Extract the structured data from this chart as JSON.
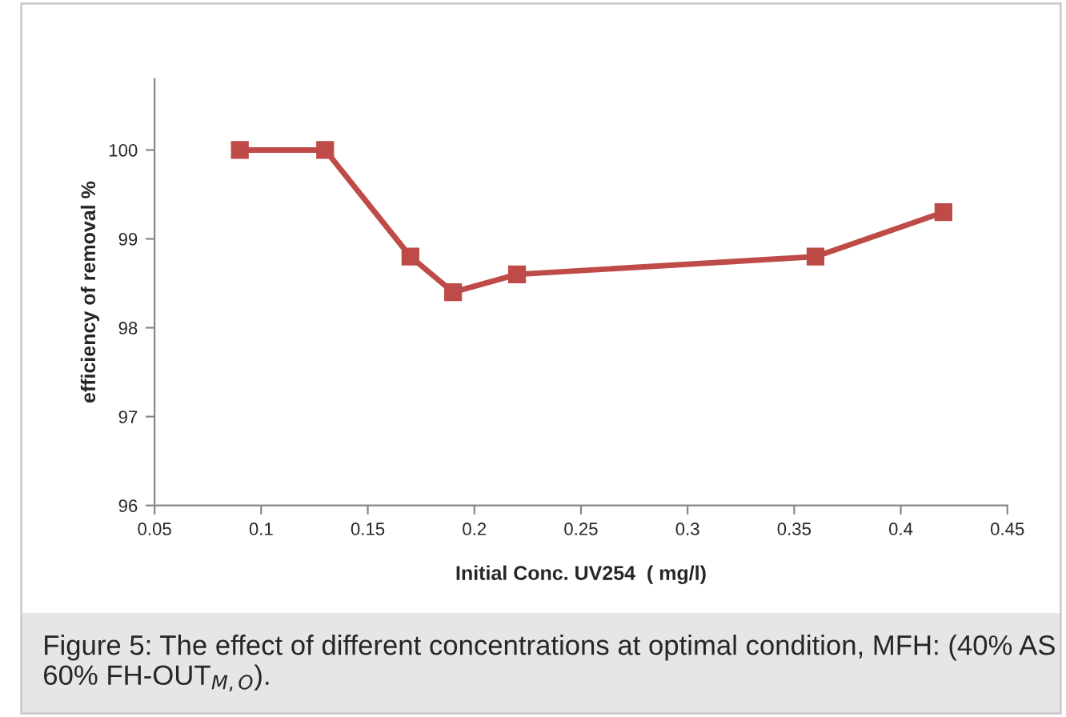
{
  "chart_data": {
    "type": "line",
    "xlabel": "Initial Conc. UV254  ( mg/l)",
    "ylabel": "efficiency of removal %",
    "x": [
      0.09,
      0.13,
      0.17,
      0.19,
      0.22,
      0.36,
      0.42
    ],
    "series": [
      {
        "color": "#be4b48",
        "values": [
          100,
          100,
          98.8,
          98.4,
          98.6,
          98.8,
          99.3
        ]
      }
    ],
    "xlim": [
      0.05,
      0.45
    ],
    "xticks": [
      0.05,
      0.1,
      0.15,
      0.2,
      0.25,
      0.3,
      0.35,
      0.4,
      0.45
    ],
    "ylim": [
      96,
      100.8
    ],
    "yticks": [
      96,
      97,
      98,
      99,
      100
    ],
    "marker": "square",
    "line_style": "solid",
    "grid": false,
    "legend": false,
    "annotations": [
      "Figure 5: The effect of different concentrations at optimal condition, MFH: (40% AS 60% FH-OUT$_{M,O}$)."
    ]
  }
}
